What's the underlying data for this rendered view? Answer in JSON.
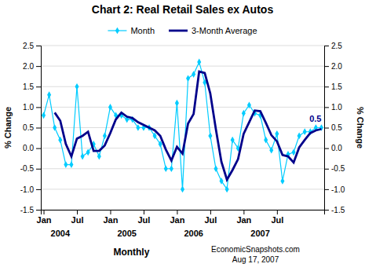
{
  "chart_data": {
    "type": "line",
    "title": "Chart 2: Real Retail Sales ex Autos",
    "xlabel": "Monthly",
    "ylabel": "% Change",
    "y2label": "% Change",
    "annotation": "0.5",
    "notes": [
      "EconomicSnapshots.com",
      "Aug 17, 2007"
    ],
    "categories": [
      "Jan",
      null,
      null,
      null,
      null,
      null,
      "Jul",
      null,
      null,
      null,
      null,
      null,
      "Jan",
      null,
      null,
      null,
      null,
      null,
      "Jul",
      null,
      null,
      null,
      null,
      null,
      "Jan",
      null,
      null,
      null,
      null,
      null,
      "Jul",
      null,
      null,
      null,
      null,
      null,
      "Jan",
      null,
      null,
      null,
      null,
      null,
      "Jul",
      null,
      null,
      null,
      null,
      null,
      null,
      null,
      null
    ],
    "x_group_labels": [
      null,
      null,
      null,
      "2004",
      null,
      null,
      null,
      null,
      null,
      null,
      null,
      null,
      null,
      null,
      null,
      "2005",
      null,
      null,
      null,
      null,
      null,
      null,
      null,
      null,
      null,
      null,
      null,
      "2006",
      null,
      null,
      null,
      null,
      null,
      null,
      null,
      null,
      null,
      null,
      null,
      "2007",
      null,
      null,
      null,
      null,
      null,
      null,
      null,
      null,
      null,
      null,
      null
    ],
    "series": [
      {
        "name": "Month",
        "color": "#00CCFF",
        "marker": "diamond",
        "values": [
          0.8,
          1.3,
          0.5,
          0.2,
          -0.4,
          -0.4,
          1.5,
          -0.2,
          -0.1,
          0.1,
          -0.2,
          0.3,
          1.0,
          0.8,
          0.8,
          0.7,
          0.7,
          0.5,
          0.5,
          0.5,
          0.3,
          0.1,
          -0.5,
          -0.5,
          1.1,
          -1.0,
          1.7,
          1.8,
          2.1,
          1.6,
          0.3,
          -0.5,
          -0.8,
          -1.0,
          0.2,
          0.0,
          0.85,
          1.05,
          0.85,
          0.8,
          0.2,
          -0.05,
          0.35,
          -0.8,
          -0.15,
          -0.1,
          0.3,
          0.4,
          0.4,
          0.5,
          0.5
        ]
      },
      {
        "name": "3-Month Average",
        "color": "#00008B",
        "values": [
          null,
          null,
          0.8666666666666667,
          0.6666666666666666,
          0.1,
          -0.2,
          0.2333333333333333,
          0.3,
          0.4,
          -0.06666666666666667,
          -0.06666666666666667,
          0.06666666666666667,
          0.3666666666666667,
          0.7,
          0.8666666666666667,
          0.7666666666666667,
          0.7333333333333333,
          0.6333333333333333,
          0.5666666666666667,
          0.5,
          0.4333333333333333,
          0.3,
          -0.03333333333333333,
          -0.3,
          0.03333333333333333,
          -0.1333333333333333,
          0.6,
          0.8333333333333334,
          1.8666666666666667,
          1.8333333333333333,
          1.3333333333333333,
          0.4666666666666667,
          -0.3333333333333333,
          -0.7666666666666667,
          -0.5333333333333333,
          -0.2666666666666667,
          0.35,
          0.6333333333333333,
          0.9166666666666666,
          0.9,
          0.6166666666666667,
          0.3166666666666667,
          0.1666666666666667,
          -0.1666666666666667,
          -0.2,
          -0.35,
          0.01666666666666667,
          0.2,
          0.3666666666666667,
          0.4333333333333333,
          0.4666666666666667
        ]
      }
    ],
    "ylim": [
      -1.5,
      2.5
    ],
    "yticks": [
      -1.5,
      {
        "value": -1.0,
        "label": "-1.0"
      },
      -0.5,
      {
        "value": 0.0,
        "label": "0.0"
      },
      0.5,
      {
        "value": 1.0,
        "label": "1.0"
      },
      1.5,
      {
        "value": 2.0,
        "label": "2.0"
      },
      2.5
    ],
    "y2lim": [
      -1.5,
      2.5
    ],
    "y2ticks": [
      -1.5,
      {
        "value": -1.0,
        "label": "-1.0"
      },
      -0.5,
      {
        "value": 0.0,
        "label": "0.0"
      },
      0.5,
      {
        "value": 1.0,
        "label": "1.0"
      },
      1.5,
      {
        "value": 2.0,
        "label": "2.0"
      },
      2.5
    ],
    "grid": true,
    "legend": "top"
  }
}
